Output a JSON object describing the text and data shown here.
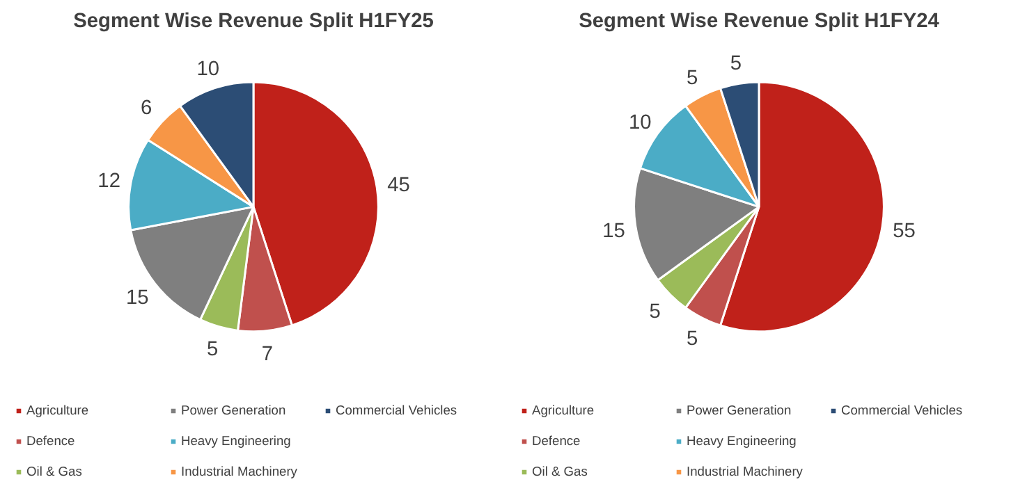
{
  "chart_data": [
    {
      "type": "pie",
      "title": "Segment Wise Revenue Split H1FY25",
      "categories": [
        "Agriculture",
        "Defence",
        "Oil & Gas",
        "Power Generation",
        "Heavy Engineering",
        "Industrial Machinery",
        "Commercial Vehicles"
      ],
      "values": [
        45,
        7,
        5,
        15,
        12,
        6,
        10
      ],
      "colors": [
        "#c0211a",
        "#c0504d",
        "#9bbb59",
        "#7f7f7f",
        "#4bacc6",
        "#f79646",
        "#2c4d75"
      ],
      "data_labels": true,
      "legend": "bottom"
    },
    {
      "type": "pie",
      "title": "Segment Wise Revenue Split H1FY24",
      "categories": [
        "Agriculture",
        "Defence",
        "Oil & Gas",
        "Power Generation",
        "Heavy Engineering",
        "Industrial Machinery",
        "Commercial Vehicles"
      ],
      "values": [
        55,
        5,
        5,
        15,
        10,
        5,
        5
      ],
      "colors": [
        "#c0211a",
        "#c0504d",
        "#9bbb59",
        "#7f7f7f",
        "#4bacc6",
        "#f79646",
        "#2c4d75"
      ],
      "data_labels": true,
      "legend": "bottom"
    }
  ]
}
